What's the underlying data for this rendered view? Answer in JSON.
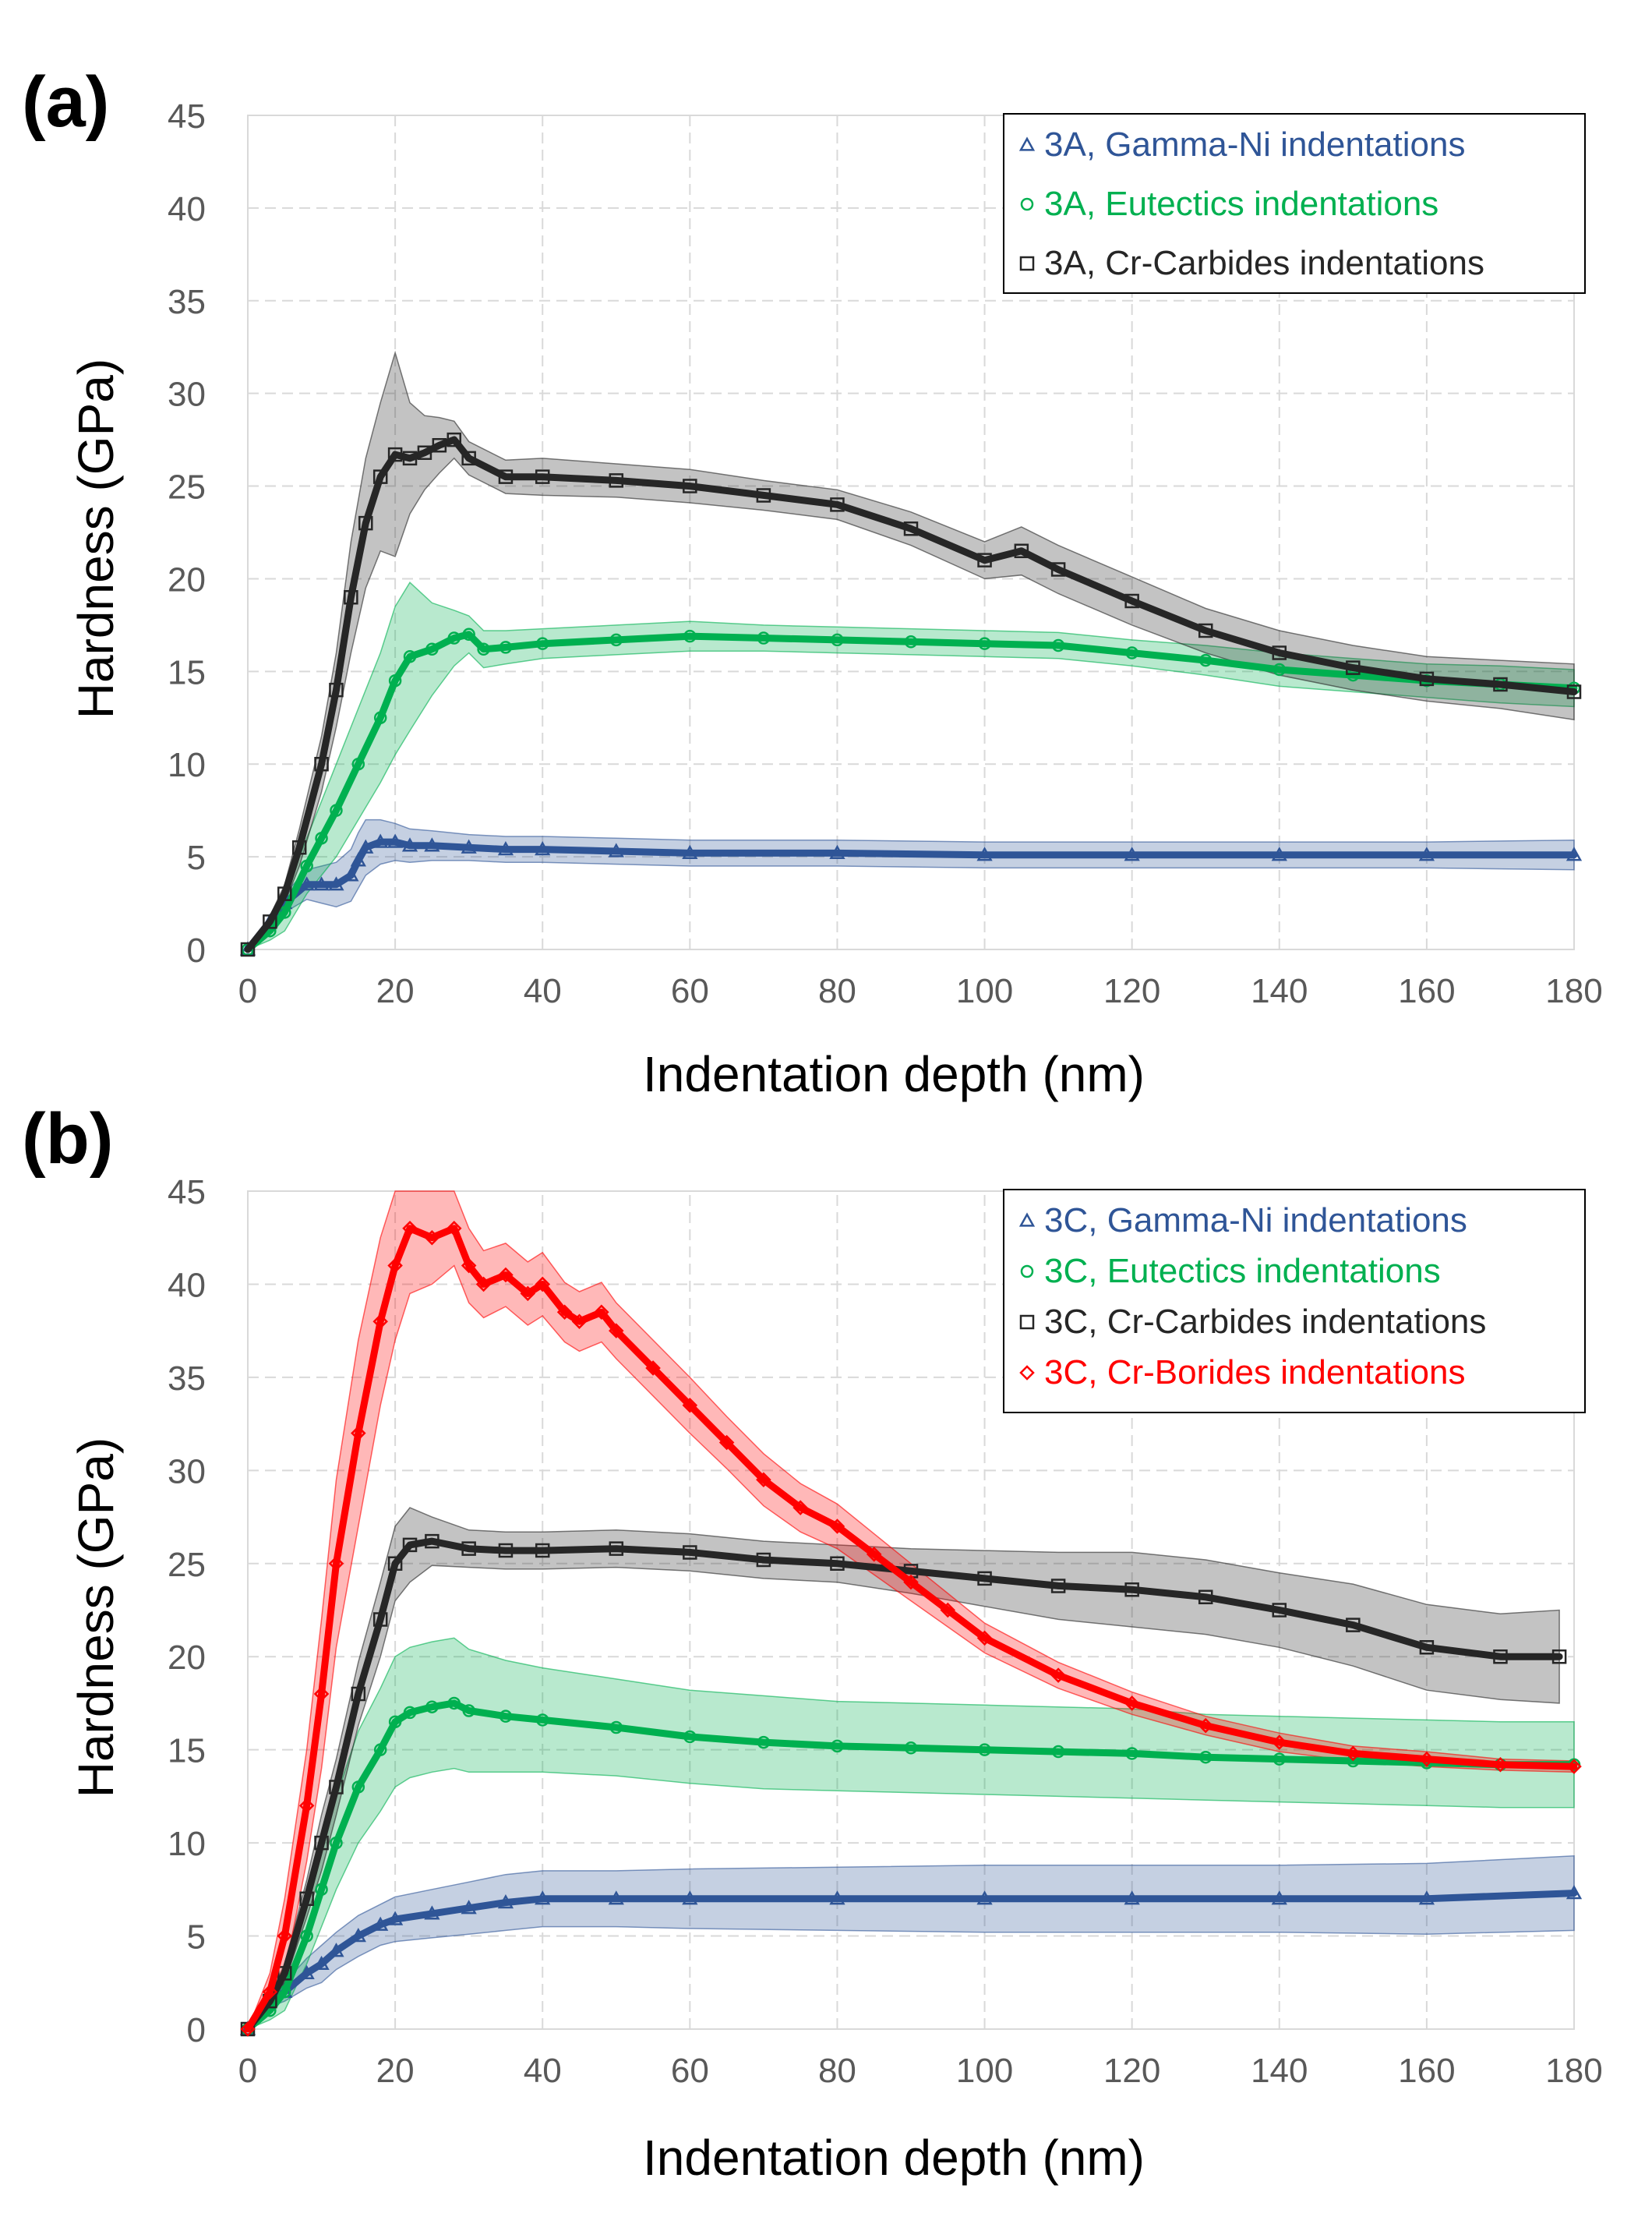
{
  "chart_data": [
    {
      "type": "line",
      "panel": "(a)",
      "xlabel": "Indentation depth (nm)",
      "ylabel": "Hardness (GPa)",
      "xlim": [
        0,
        180
      ],
      "ylim": [
        0,
        45
      ],
      "xticks": [
        "0",
        "20",
        "40",
        "60",
        "80",
        "100",
        "120",
        "140",
        "160",
        "180"
      ],
      "yticks": [
        "0",
        "5",
        "10",
        "15",
        "20",
        "25",
        "30",
        "35",
        "40",
        "45"
      ],
      "grid": true,
      "legend_position": "top-right",
      "series": [
        {
          "name": "3A, Gamma-Ni indentations",
          "color": "#2f5597",
          "marker": "triangle",
          "x": [
            0,
            3,
            5,
            8,
            10,
            12,
            14,
            15,
            16,
            18,
            20,
            22,
            25,
            30,
            35,
            40,
            50,
            60,
            80,
            100,
            120,
            140,
            160,
            180
          ],
          "y": [
            0,
            1.5,
            2.5,
            3.5,
            3.5,
            3.5,
            4,
            4.8,
            5.5,
            5.8,
            5.8,
            5.6,
            5.6,
            5.5,
            5.4,
            5.4,
            5.3,
            5.2,
            5.2,
            5.1,
            5.1,
            5.1,
            5.1,
            5.1
          ],
          "err": [
            0,
            0.3,
            0.5,
            0.8,
            1,
            1.2,
            1.4,
            1.5,
            1.5,
            1.2,
            1,
            0.9,
            0.8,
            0.7,
            0.7,
            0.7,
            0.7,
            0.7,
            0.7,
            0.7,
            0.7,
            0.7,
            0.7,
            0.8
          ]
        },
        {
          "name": "3A, Eutectics indentations",
          "color": "#00b050",
          "marker": "circle",
          "x": [
            0,
            3,
            5,
            8,
            10,
            12,
            15,
            18,
            20,
            22,
            25,
            28,
            30,
            32,
            35,
            40,
            50,
            60,
            70,
            80,
            90,
            100,
            110,
            120,
            130,
            140,
            150,
            160,
            170,
            180
          ],
          "y": [
            0,
            1,
            2,
            4.5,
            6,
            7.5,
            10,
            12.5,
            14.5,
            15.8,
            16.2,
            16.8,
            17,
            16.2,
            16.3,
            16.5,
            16.7,
            16.9,
            16.8,
            16.7,
            16.6,
            16.5,
            16.4,
            16,
            15.6,
            15.1,
            14.8,
            14.5,
            14.3,
            14.1
          ],
          "err": [
            0,
            0.5,
            1,
            1.5,
            2,
            2.5,
            3,
            3.5,
            4,
            4,
            2.5,
            1.5,
            1,
            1,
            0.9,
            0.8,
            0.8,
            0.8,
            0.7,
            0.7,
            0.7,
            0.7,
            0.7,
            0.7,
            0.8,
            0.9,
            0.9,
            0.9,
            1,
            1
          ]
        },
        {
          "name": "3A, Cr-Carbides indentations",
          "color": "#262626",
          "marker": "square",
          "x": [
            0,
            3,
            5,
            7,
            10,
            12,
            14,
            16,
            18,
            20,
            22,
            24,
            26,
            28,
            30,
            35,
            40,
            50,
            60,
            70,
            80,
            90,
            100,
            105,
            110,
            120,
            130,
            140,
            150,
            160,
            170,
            180
          ],
          "y": [
            0,
            1.5,
            3,
            5.5,
            10,
            14,
            19,
            23,
            25.5,
            26.7,
            26.5,
            26.8,
            27.2,
            27.5,
            26.5,
            25.5,
            25.5,
            25.3,
            25,
            24.5,
            24,
            22.7,
            21,
            21.5,
            20.5,
            18.8,
            17.2,
            16,
            15.2,
            14.6,
            14.3,
            13.9
          ],
          "err": [
            0,
            0.3,
            0.5,
            1,
            1.5,
            2,
            3,
            3.5,
            4,
            5.5,
            3,
            2,
            1.5,
            1,
            0.9,
            0.9,
            1,
            0.9,
            0.9,
            0.8,
            0.8,
            0.9,
            1,
            1.3,
            1.3,
            1.3,
            1.2,
            1.2,
            1.2,
            1.2,
            1.3,
            1.5
          ]
        }
      ]
    },
    {
      "type": "line",
      "panel": "(b)",
      "xlabel": "Indentation depth (nm)",
      "ylabel": "Hardness (GPa)",
      "xlim": [
        0,
        180
      ],
      "ylim": [
        0,
        45
      ],
      "xticks": [
        "0",
        "20",
        "40",
        "60",
        "80",
        "100",
        "120",
        "140",
        "160",
        "180"
      ],
      "yticks": [
        "0",
        "5",
        "10",
        "15",
        "20",
        "25",
        "30",
        "35",
        "40",
        "45"
      ],
      "grid": true,
      "legend_position": "top-right",
      "series": [
        {
          "name": "3C, Gamma-Ni indentations",
          "color": "#2f5597",
          "marker": "triangle",
          "x": [
            0,
            3,
            5,
            8,
            10,
            12,
            15,
            18,
            20,
            25,
            30,
            35,
            40,
            50,
            60,
            80,
            100,
            120,
            140,
            160,
            180
          ],
          "y": [
            0,
            1.5,
            2,
            3,
            3.5,
            4.2,
            5,
            5.6,
            5.9,
            6.2,
            6.5,
            6.8,
            7,
            7,
            7,
            7,
            7,
            7,
            7,
            7,
            7.3
          ],
          "err": [
            0,
            0.3,
            0.5,
            0.8,
            1,
            1,
            1.1,
            1.1,
            1.2,
            1.3,
            1.4,
            1.5,
            1.5,
            1.5,
            1.6,
            1.7,
            1.8,
            1.8,
            1.8,
            1.9,
            2
          ]
        },
        {
          "name": "3C, Eutectics indentations",
          "color": "#00b050",
          "marker": "circle",
          "x": [
            0,
            3,
            5,
            8,
            10,
            12,
            15,
            18,
            20,
            22,
            25,
            28,
            30,
            35,
            40,
            50,
            60,
            70,
            80,
            90,
            100,
            110,
            120,
            130,
            140,
            150,
            160,
            170,
            180
          ],
          "y": [
            0,
            1,
            2,
            5,
            7.5,
            10,
            13,
            15,
            16.5,
            17,
            17.3,
            17.5,
            17.1,
            16.8,
            16.6,
            16.2,
            15.7,
            15.4,
            15.2,
            15.1,
            15,
            14.9,
            14.8,
            14.6,
            14.5,
            14.4,
            14.3,
            14.2,
            14.2
          ],
          "err": [
            0,
            0.5,
            1,
            1.5,
            2,
            2.5,
            3,
            3.3,
            3.5,
            3.5,
            3.5,
            3.5,
            3.3,
            3,
            2.8,
            2.6,
            2.5,
            2.5,
            2.4,
            2.4,
            2.4,
            2.4,
            2.4,
            2.3,
            2.3,
            2.3,
            2.3,
            2.3,
            2.3
          ]
        },
        {
          "name": "3C, Cr-Carbides indentations",
          "color": "#262626",
          "marker": "square",
          "x": [
            0,
            3,
            5,
            8,
            10,
            12,
            15,
            18,
            20,
            22,
            25,
            30,
            35,
            40,
            50,
            60,
            70,
            80,
            90,
            100,
            110,
            120,
            130,
            140,
            150,
            160,
            170,
            178
          ],
          "y": [
            0,
            1.5,
            3,
            7,
            10,
            13,
            18,
            22,
            25,
            26,
            26.2,
            25.8,
            25.7,
            25.7,
            25.8,
            25.6,
            25.2,
            25,
            24.6,
            24.2,
            23.8,
            23.6,
            23.2,
            22.5,
            21.7,
            20.5,
            20,
            20
          ],
          "err": [
            0,
            0.3,
            0.5,
            1,
            1.5,
            1.5,
            1.7,
            2,
            2,
            2,
            1.3,
            1,
            1,
            1,
            1,
            1,
            1,
            1,
            1.2,
            1.5,
            1.8,
            2,
            2,
            2,
            2.2,
            2.3,
            2.3,
            2.5
          ]
        },
        {
          "name": "3C, Cr-Borides indentations",
          "color": "#ff0000",
          "marker": "diamond",
          "x": [
            0,
            3,
            5,
            8,
            10,
            12,
            15,
            18,
            20,
            22,
            25,
            28,
            30,
            32,
            35,
            38,
            40,
            43,
            45,
            48,
            50,
            55,
            60,
            65,
            70,
            75,
            80,
            85,
            90,
            95,
            100,
            110,
            120,
            130,
            140,
            150,
            160,
            170,
            180
          ],
          "y": [
            0,
            2,
            5,
            12,
            18,
            25,
            32,
            38,
            41,
            43,
            42.5,
            43,
            41,
            40,
            40.5,
            39.5,
            40,
            38.5,
            38,
            38.5,
            37.5,
            35.5,
            33.5,
            31.5,
            29.5,
            28,
            27,
            25.5,
            24,
            22.5,
            21,
            19,
            17.5,
            16.3,
            15.4,
            14.8,
            14.5,
            14.2,
            14.1
          ],
          "err": [
            0,
            1,
            2,
            3,
            4,
            4.5,
            5,
            4.5,
            4,
            3.5,
            2.5,
            2,
            2,
            1.8,
            1.7,
            1.7,
            1.7,
            1.6,
            1.6,
            1.6,
            1.5,
            1.5,
            1.5,
            1.4,
            1.4,
            1.3,
            1.2,
            1.1,
            1,
            0.9,
            0.8,
            0.7,
            0.6,
            0.5,
            0.5,
            0.4,
            0.4,
            0.3,
            0.3
          ]
        }
      ]
    }
  ]
}
